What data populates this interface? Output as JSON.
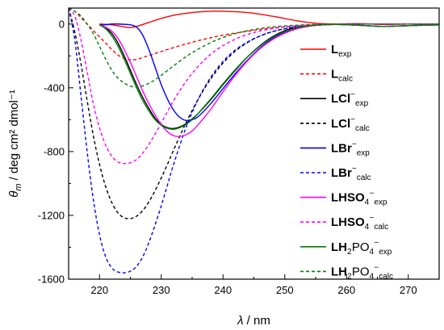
{
  "chart_data": {
    "type": "line",
    "xlabel": {
      "symbol": "λ",
      "unit": " / nm"
    },
    "ylabel": {
      "symbol": "θ",
      "sub": "m",
      "unit": " / deg cm² dmol⁻¹"
    },
    "xlim": [
      215,
      275
    ],
    "ylim": [
      -1600,
      100
    ],
    "xticks": [
      220,
      230,
      240,
      250,
      260,
      270
    ],
    "yticks": [
      0,
      -400,
      -800,
      -1200,
      -1600
    ],
    "grid": false,
    "legend_position": "right",
    "series": [
      {
        "name": "Lexp",
        "label": {
          "main": "L",
          "sup": "",
          "sub": "exp"
        },
        "color": "#ff0000",
        "dash": false,
        "x": [
          220,
          222,
          224,
          225,
          226,
          228,
          230,
          232,
          235,
          238,
          240,
          243,
          246,
          249,
          252,
          255,
          258,
          262,
          266,
          270,
          275
        ],
        "y": [
          0,
          -5,
          -18,
          -22,
          -15,
          10,
          35,
          55,
          72,
          80,
          80,
          75,
          62,
          42,
          20,
          5,
          0,
          2,
          -3,
          0,
          0
        ]
      },
      {
        "name": "Lcalc",
        "label": {
          "main": "L",
          "sup": "",
          "sub": "calc"
        },
        "color": "#ff0000",
        "dash": true,
        "x": [
          215,
          216,
          217,
          218,
          219,
          220,
          221,
          222,
          223,
          224,
          225,
          226,
          227,
          229,
          231,
          234,
          237,
          240,
          244,
          248,
          252,
          256,
          260,
          265,
          270,
          275
        ],
        "y": [
          100,
          80,
          40,
          0,
          -40,
          -80,
          -120,
          -160,
          -195,
          -215,
          -225,
          -222,
          -210,
          -185,
          -160,
          -125,
          -95,
          -70,
          -45,
          -25,
          -12,
          -5,
          -2,
          0,
          0,
          0
        ]
      },
      {
        "name": "LCl−exp",
        "label": {
          "main": "LCl",
          "sup": "−",
          "sub": "exp"
        },
        "color": "#000000",
        "dash": false,
        "x": [
          220,
          221,
          222,
          223,
          224,
          225,
          226,
          227,
          228,
          229,
          230,
          231,
          232,
          233,
          234,
          235,
          236,
          238,
          240,
          242,
          244,
          246,
          248,
          250,
          252,
          254,
          256,
          258,
          262,
          266,
          270,
          275
        ],
        "y": [
          -5,
          -25,
          -60,
          -120,
          -200,
          -290,
          -380,
          -460,
          -530,
          -590,
          -630,
          -650,
          -655,
          -645,
          -625,
          -595,
          -560,
          -475,
          -380,
          -290,
          -205,
          -135,
          -80,
          -42,
          -20,
          -10,
          -5,
          -2,
          -8,
          -15,
          -10,
          -5
        ]
      },
      {
        "name": "LCl−calc",
        "label": {
          "main": "LCl",
          "sup": "−",
          "sub": "calc"
        },
        "color": "#000000",
        "dash": true,
        "x": [
          215,
          216,
          217,
          218,
          219,
          220,
          221,
          222,
          223,
          224,
          225,
          226,
          227,
          228,
          229,
          230,
          231,
          232,
          234,
          236,
          238,
          240,
          242,
          244,
          246,
          248,
          250,
          252,
          255,
          258,
          262,
          266,
          270,
          275
        ],
        "y": [
          100,
          -50,
          -250,
          -480,
          -700,
          -880,
          -1020,
          -1120,
          -1185,
          -1215,
          -1220,
          -1205,
          -1170,
          -1115,
          -1045,
          -965,
          -880,
          -790,
          -620,
          -470,
          -345,
          -245,
          -170,
          -115,
          -75,
          -48,
          -30,
          -18,
          -8,
          -3,
          0,
          0,
          0,
          0
        ]
      },
      {
        "name": "LBr−exp",
        "label": {
          "main": "LBr",
          "sup": "−",
          "sub": "exp"
        },
        "color": "#0000ff",
        "dash": false,
        "x": [
          220,
          221,
          222,
          223,
          224,
          225,
          226,
          227,
          228,
          229,
          230,
          231,
          232,
          233,
          234,
          235,
          236,
          238,
          240,
          242,
          244,
          246,
          248,
          250,
          252,
          254,
          256,
          258,
          262,
          266,
          270,
          275
        ],
        "y": [
          -5,
          -5,
          0,
          0,
          -2,
          -5,
          -20,
          -70,
          -160,
          -270,
          -380,
          -470,
          -540,
          -585,
          -605,
          -600,
          -580,
          -500,
          -405,
          -310,
          -225,
          -150,
          -92,
          -52,
          -26,
          -12,
          -5,
          -2,
          -8,
          -15,
          -10,
          -5
        ]
      },
      {
        "name": "LBr−calc",
        "label": {
          "main": "LBr",
          "sup": "−",
          "sub": "calc"
        },
        "color": "#0000ff",
        "dash": true,
        "x": [
          215,
          216,
          217,
          218,
          219,
          220,
          221,
          222,
          223,
          224,
          225,
          226,
          227,
          228,
          229,
          230,
          231,
          232,
          234,
          236,
          238,
          240,
          242,
          244,
          246,
          248,
          250,
          252,
          255,
          258,
          262,
          266,
          270,
          275
        ],
        "y": [
          100,
          -100,
          -450,
          -800,
          -1100,
          -1320,
          -1460,
          -1530,
          -1555,
          -1560,
          -1550,
          -1520,
          -1460,
          -1370,
          -1260,
          -1140,
          -1010,
          -880,
          -650,
          -470,
          -335,
          -235,
          -163,
          -112,
          -75,
          -48,
          -30,
          -18,
          -8,
          -3,
          0,
          0,
          0,
          0
        ]
      },
      {
        "name": "LHSO4−exp",
        "label": {
          "main": "LHSO",
          "mid": "4",
          "sup": "−",
          "sub": "exp"
        },
        "color": "#ff00ff",
        "dash": false,
        "x": [
          220,
          221,
          222,
          223,
          224,
          225,
          226,
          227,
          228,
          229,
          230,
          231,
          232,
          233,
          234,
          235,
          236,
          238,
          240,
          242,
          244,
          246,
          248,
          250,
          252,
          254,
          256,
          258,
          262,
          266,
          270,
          275
        ],
        "y": [
          -5,
          -20,
          -45,
          -90,
          -160,
          -240,
          -330,
          -420,
          -500,
          -570,
          -630,
          -675,
          -700,
          -705,
          -695,
          -670,
          -630,
          -535,
          -425,
          -320,
          -230,
          -155,
          -98,
          -58,
          -30,
          -14,
          -6,
          -2,
          -8,
          -15,
          -10,
          -5
        ]
      },
      {
        "name": "LHSO4−calc",
        "label": {
          "main": "LHSO",
          "mid": "4",
          "sup": "−",
          "sub": "calc"
        },
        "color": "#ff00ff",
        "dash": true,
        "x": [
          215,
          216,
          217,
          218,
          219,
          220,
          221,
          222,
          223,
          224,
          225,
          226,
          227,
          228,
          229,
          230,
          231,
          232,
          234,
          236,
          238,
          240,
          242,
          244,
          246,
          248,
          250,
          252,
          255,
          258,
          262,
          266,
          270,
          275
        ],
        "y": [
          100,
          50,
          -100,
          -300,
          -500,
          -650,
          -760,
          -830,
          -865,
          -875,
          -870,
          -850,
          -810,
          -755,
          -690,
          -620,
          -550,
          -480,
          -360,
          -265,
          -190,
          -135,
          -95,
          -65,
          -44,
          -29,
          -19,
          -12,
          -5,
          -2,
          0,
          0,
          0,
          0
        ]
      },
      {
        "name": "LH2PO4−exp",
        "label": {
          "main": "LH",
          "mid": "2",
          "main2": "PO",
          "mid2": "4",
          "sup": "−",
          "sub": "exp"
        },
        "color": "#008000",
        "dash": false,
        "x": [
          220,
          221,
          222,
          223,
          224,
          225,
          226,
          227,
          228,
          229,
          230,
          231,
          232,
          233,
          234,
          235,
          236,
          238,
          240,
          242,
          244,
          246,
          248,
          250,
          252,
          254,
          256,
          258,
          262,
          266,
          270,
          275
        ],
        "y": [
          -5,
          -30,
          -75,
          -140,
          -220,
          -310,
          -400,
          -480,
          -545,
          -600,
          -635,
          -655,
          -660,
          -650,
          -630,
          -600,
          -560,
          -470,
          -375,
          -285,
          -205,
          -138,
          -85,
          -48,
          -24,
          -11,
          -5,
          -2,
          -8,
          -15,
          -10,
          -5
        ]
      },
      {
        "name": "LH2PO4−calc",
        "label": {
          "main": "LH",
          "mid": "2",
          "main2": "PO",
          "mid2": "4",
          "sup": "−",
          "sub": "calc"
        },
        "color": "#008000",
        "dash": true,
        "x": [
          215,
          216,
          217,
          218,
          219,
          220,
          221,
          222,
          223,
          224,
          225,
          226,
          227,
          228,
          229,
          230,
          231,
          232,
          234,
          236,
          238,
          240,
          242,
          244,
          246,
          248,
          250,
          252,
          255,
          258,
          262,
          266,
          270,
          275
        ],
        "y": [
          100,
          80,
          50,
          0,
          -60,
          -140,
          -220,
          -290,
          -340,
          -370,
          -390,
          -395,
          -388,
          -372,
          -350,
          -322,
          -292,
          -262,
          -205,
          -157,
          -117,
          -85,
          -60,
          -42,
          -28,
          -18,
          -12,
          -7,
          -3,
          -1,
          0,
          0,
          0,
          0
        ]
      }
    ]
  }
}
